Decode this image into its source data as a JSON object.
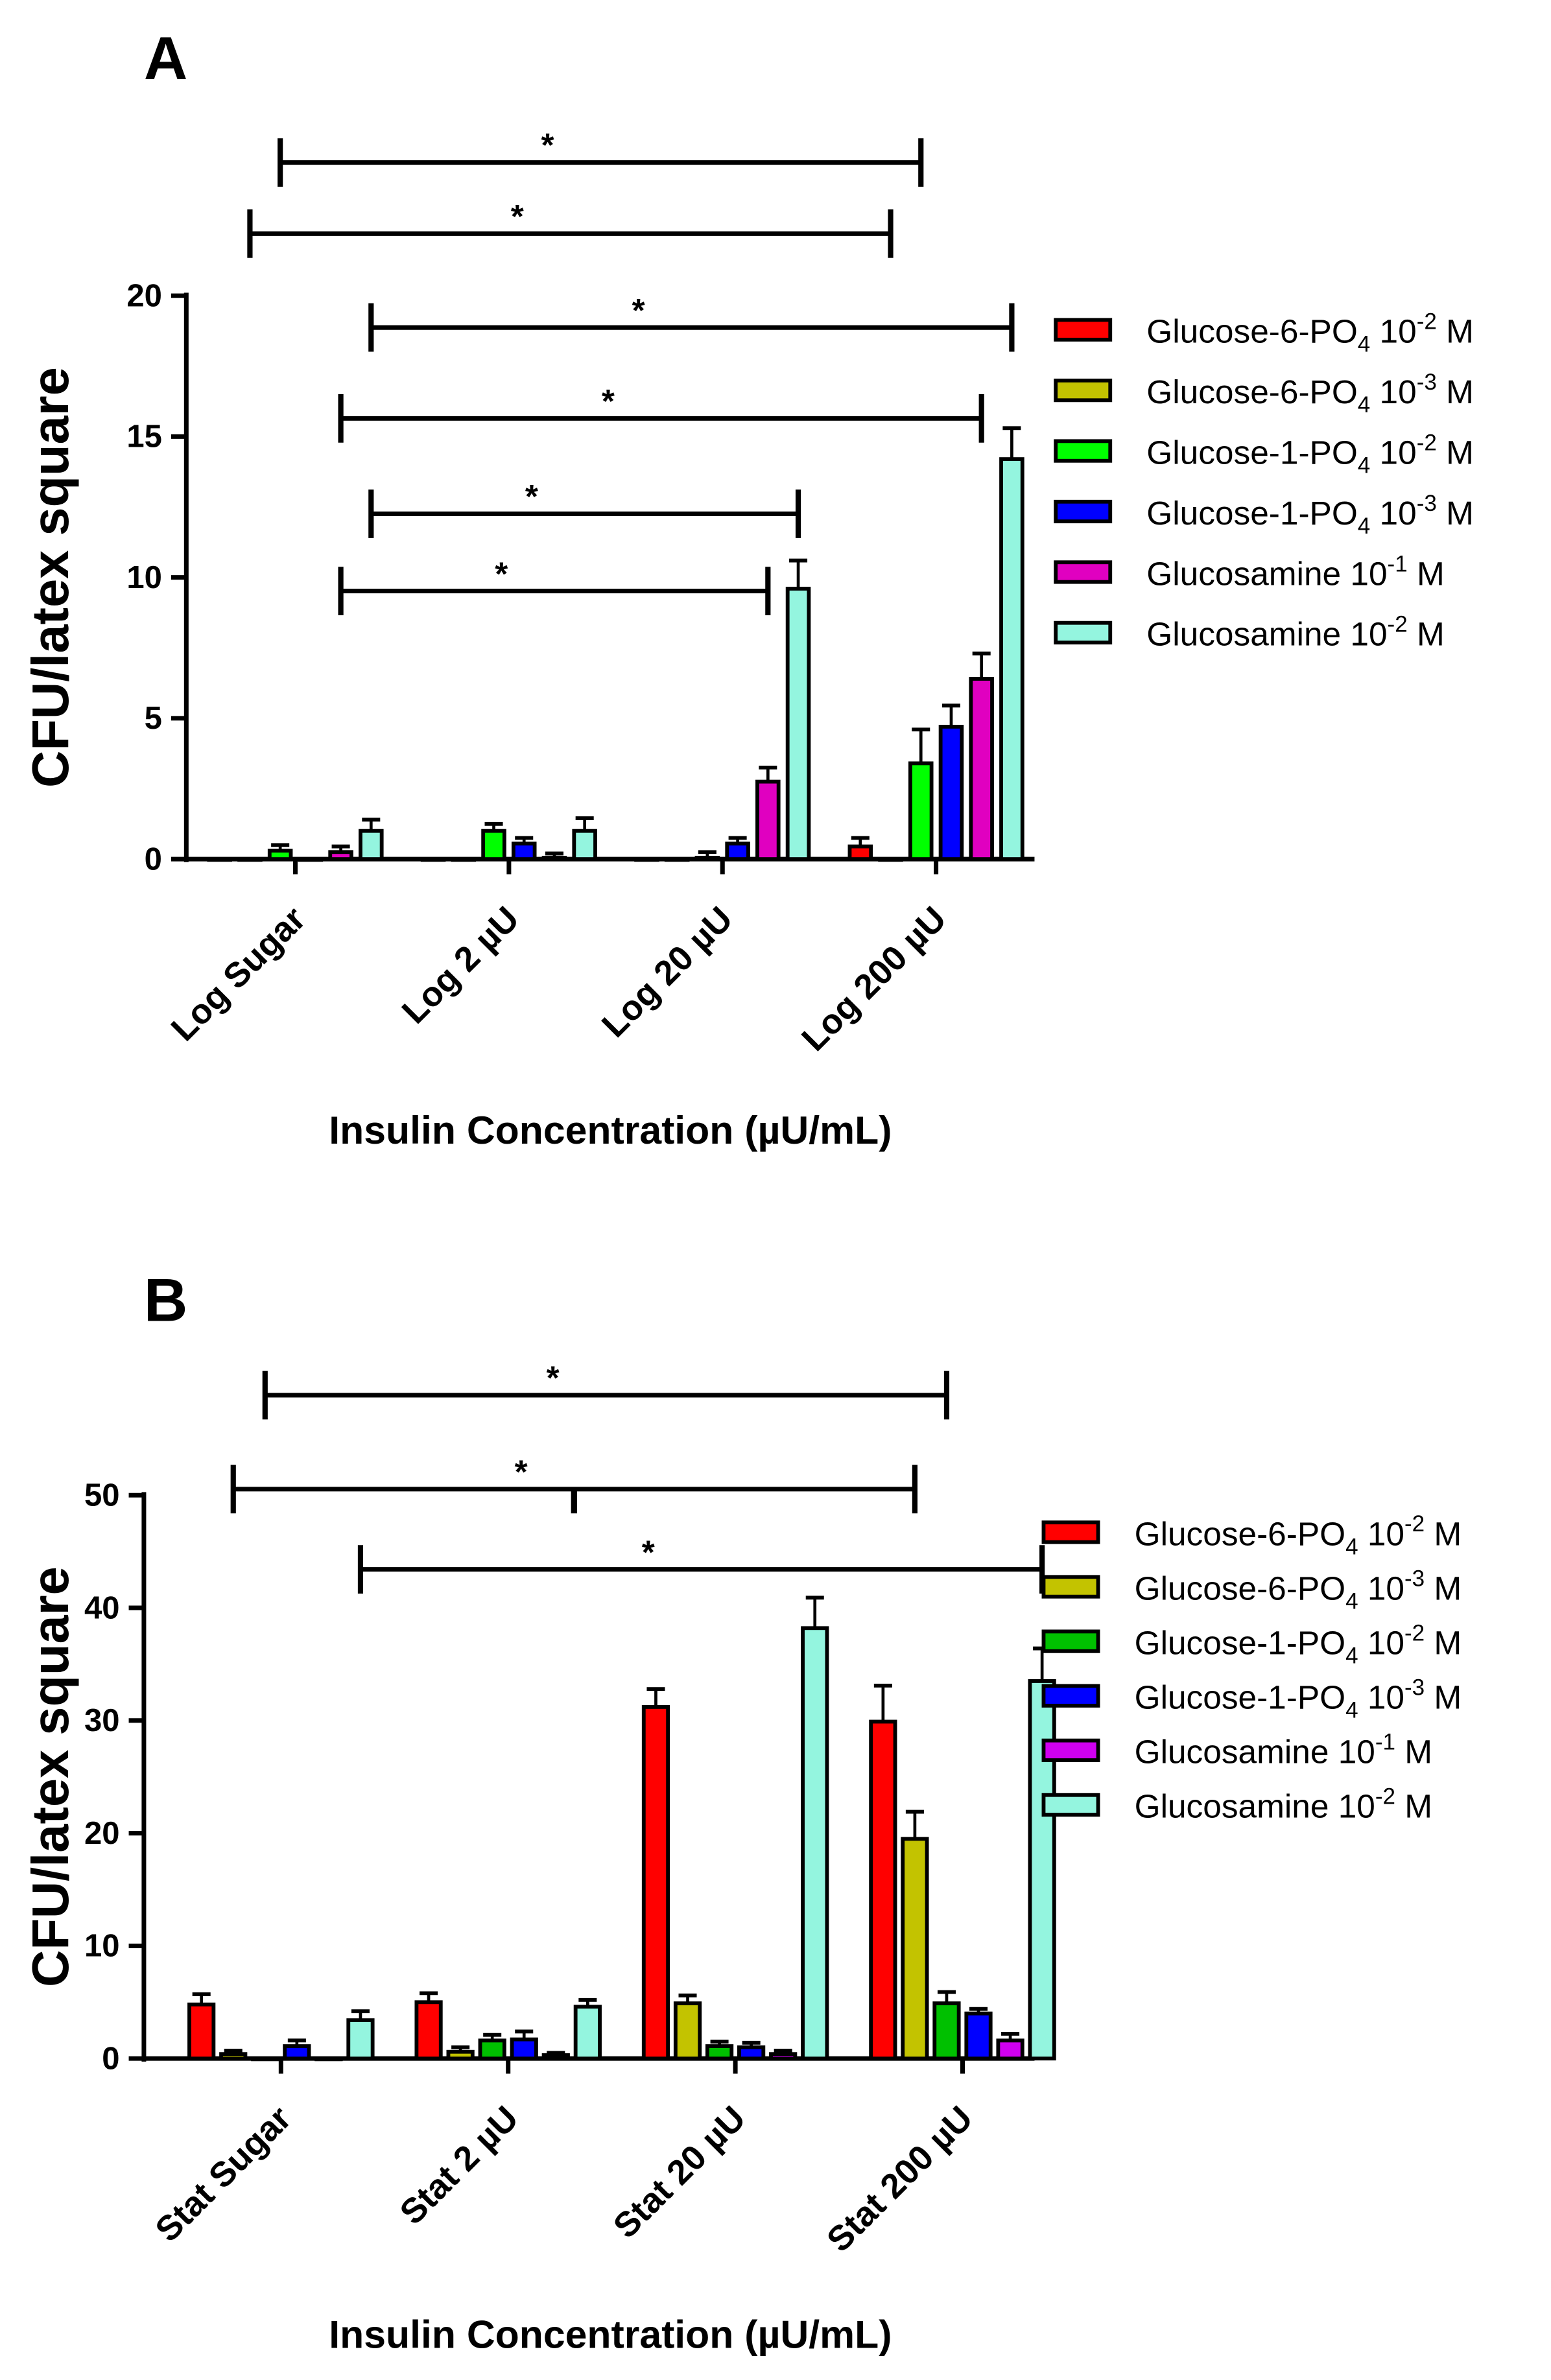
{
  "chart_data": [
    {
      "panel": "A",
      "type": "bar",
      "ylabel": "CFU/latex square",
      "xlabel": "Insulin Concentration (µU/mL)",
      "ylim": [
        0,
        20
      ],
      "yticks": [
        0,
        5,
        10,
        15,
        20
      ],
      "categories": [
        "Log Sugar",
        "Log 2 µU",
        "Log 20 µU",
        "Log 200 µU"
      ],
      "legend_position": "right",
      "series": [
        {
          "name": "Glucose-6-PO",
          "sub": "4",
          "conc": " 10",
          "sup": "-2",
          "unit": " M",
          "color": "#ff0000",
          "values": [
            0,
            0,
            0,
            0.45
          ],
          "errors": [
            0,
            0,
            0,
            0.3
          ]
        },
        {
          "name": "Glucose-6-PO",
          "sub": "4",
          "conc": " 10",
          "sup": "-3",
          "unit": " M",
          "color": "#c3c300",
          "values": [
            0,
            0,
            0,
            0
          ],
          "errors": [
            0,
            0,
            0,
            0
          ]
        },
        {
          "name": "Glucose-1-PO",
          "sub": "4",
          "conc": " 10",
          "sup": "-2",
          "unit": " M",
          "color": "#00ff00",
          "values": [
            0.3,
            1.0,
            0.05,
            3.4
          ],
          "errors": [
            0.2,
            0.25,
            0.2,
            1.2
          ]
        },
        {
          "name": "Glucose-1-PO",
          "sub": "4",
          "conc": " 10",
          "sup": "-3",
          "unit": " M",
          "color": "#0000ff",
          "values": [
            0,
            0.55,
            0.55,
            4.7
          ],
          "errors": [
            0,
            0.2,
            0.2,
            0.75
          ]
        },
        {
          "name": "Glucosamine",
          "sub": "",
          "conc": " 10",
          "sup": "-1",
          "unit": " M",
          "color": "#e000c0",
          "values": [
            0.25,
            0.05,
            2.75,
            6.4
          ],
          "errors": [
            0.2,
            0.15,
            0.5,
            0.9
          ]
        },
        {
          "name": "Glucosamine",
          "sub": "",
          "conc": " 10",
          "sup": "-2",
          "unit": " M",
          "color": "#94f5df",
          "values": [
            1.0,
            1.0,
            9.6,
            14.2
          ],
          "errors": [
            0.4,
            0.45,
            1.0,
            1.1
          ]
        }
      ],
      "significance": [
        {
          "from": [
            0,
            2
          ],
          "to": [
            3,
            2
          ],
          "label": "*"
        },
        {
          "from": [
            0,
            1
          ],
          "to": [
            3,
            1
          ],
          "label": "*"
        },
        {
          "from": [
            0,
            5
          ],
          "to": [
            3,
            5
          ],
          "label": "*"
        },
        {
          "from": [
            0,
            4
          ],
          "to": [
            3,
            4
          ],
          "label": "*"
        },
        {
          "from": [
            0,
            5
          ],
          "to": [
            2,
            5
          ],
          "label": "*"
        },
        {
          "from": [
            0,
            4
          ],
          "to": [
            2,
            4
          ],
          "label": "*"
        }
      ]
    },
    {
      "panel": "B",
      "type": "bar",
      "ylabel": "CFU/latex square",
      "xlabel": "Insulin Concentration (µU/mL)",
      "ylim": [
        0,
        50
      ],
      "yticks": [
        0,
        10,
        20,
        30,
        40,
        50
      ],
      "categories": [
        "Stat Sugar",
        "Stat 2 µU",
        "Stat 20 µU",
        "Stat 200 µU"
      ],
      "legend_position": "right",
      "series": [
        {
          "name": "Glucose-6-PO",
          "sub": "4",
          "conc": " 10",
          "sup": "-2",
          "unit": " M",
          "color": "#ff0000",
          "values": [
            4.8,
            5.0,
            31.2,
            29.9
          ],
          "errors": [
            0.9,
            0.8,
            1.6,
            3.2
          ]
        },
        {
          "name": "Glucose-6-PO",
          "sub": "4",
          "conc": " 10",
          "sup": "-3",
          "unit": " M",
          "color": "#c3c300",
          "values": [
            0.4,
            0.6,
            4.9,
            19.5
          ],
          "errors": [
            0.3,
            0.4,
            0.7,
            2.4
          ]
        },
        {
          "name": "Glucose-1-PO",
          "sub": "4",
          "conc": " 10",
          "sup": "-2",
          "unit": " M",
          "color": "#00c000",
          "values": [
            0,
            1.6,
            1.1,
            4.9
          ],
          "errors": [
            0,
            0.5,
            0.4,
            1.0
          ]
        },
        {
          "name": "Glucose-1-PO",
          "sub": "4",
          "conc": " 10",
          "sup": "-3",
          "unit": " M",
          "color": "#0000ff",
          "values": [
            1.1,
            1.7,
            1.0,
            4.0
          ],
          "errors": [
            0.5,
            0.7,
            0.4,
            0.4
          ]
        },
        {
          "name": "Glucosamine",
          "sub": "",
          "conc": " 10",
          "sup": "-1",
          "unit": " M",
          "color": "#d000f0",
          "values": [
            0,
            0.3,
            0.4,
            1.6
          ],
          "errors": [
            0,
            0.2,
            0.3,
            0.6
          ]
        },
        {
          "name": "Glucosamine",
          "sub": "",
          "conc": " 10",
          "sup": "-2",
          "unit": " M",
          "color": "#94f5df",
          "values": [
            3.4,
            4.6,
            38.2,
            33.5
          ],
          "errors": [
            0.8,
            0.6,
            2.7,
            2.9
          ]
        }
      ],
      "significance": [
        {
          "from": [
            0,
            2
          ],
          "to": [
            3,
            2
          ],
          "label": "*"
        },
        {
          "from": [
            0,
            1
          ],
          "to": [
            3,
            1
          ],
          "label": "*",
          "mid_tick": true
        },
        {
          "from": [
            0,
            5
          ],
          "to": [
            3,
            5
          ],
          "label": "*"
        }
      ]
    }
  ]
}
